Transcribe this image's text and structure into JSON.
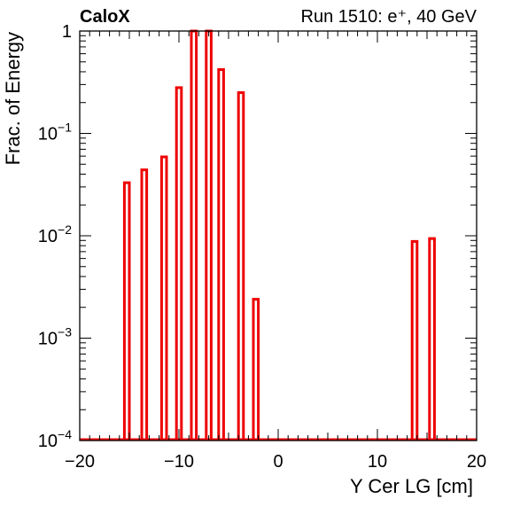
{
  "header": {
    "brand": "CaloX",
    "run_info": "Run 1510: e⁺, 40 GeV"
  },
  "chart_data": {
    "type": "histogram",
    "xlabel": "Y Cer LG [cm]",
    "ylabel": "Frac. of Energy",
    "xlim": [
      -20,
      20
    ],
    "ylim": [
      0.0001,
      1
    ],
    "y_scale": "log",
    "grid": false,
    "legend": "none",
    "x_ticks": [
      -20,
      -10,
      0,
      10,
      20
    ],
    "x_tick_labels": [
      "−20",
      "−10",
      "0",
      "10",
      "20"
    ],
    "y_ticks": [
      {
        "value": 0.0001,
        "base": "10",
        "exp": "−4"
      },
      {
        "value": 0.001,
        "base": "10",
        "exp": "−3"
      },
      {
        "value": 0.01,
        "base": "10",
        "exp": "−2"
      },
      {
        "value": 0.1,
        "base": "10",
        "exp": "−1"
      },
      {
        "value": 1,
        "base": "1",
        "exp": ""
      }
    ],
    "bin_width": 0.5,
    "bins": [
      {
        "x": -15.25,
        "value": 0.033
      },
      {
        "x": -13.5,
        "value": 0.044
      },
      {
        "x": -11.5,
        "value": 0.059
      },
      {
        "x": -10.0,
        "value": 0.28
      },
      {
        "x": -8.5,
        "value": 1.0
      },
      {
        "x": -7.0,
        "value": 1.0
      },
      {
        "x": -5.75,
        "value": 0.42
      },
      {
        "x": -3.75,
        "value": 0.25
      },
      {
        "x": -2.25,
        "value": 0.0024
      },
      {
        "x": 13.75,
        "value": 0.0088
      },
      {
        "x": 15.5,
        "value": 0.0094
      }
    ],
    "color": "#ee0000"
  }
}
